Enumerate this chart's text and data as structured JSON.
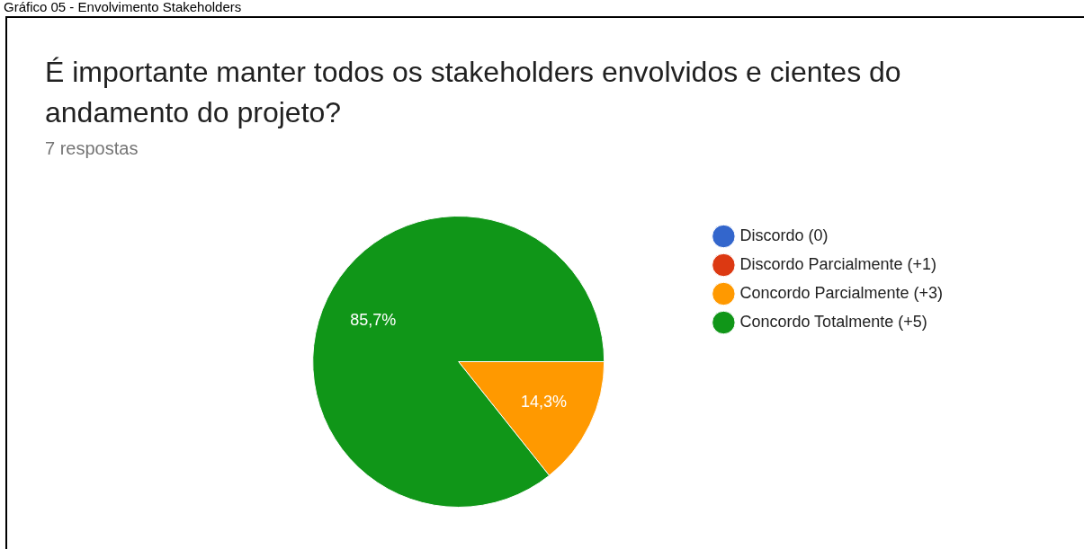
{
  "chart_data": {
    "type": "pie",
    "title": "É importante manter todos os stakeholders envolvidos e cientes do andamento do projeto?",
    "subtitle": "7 respostas",
    "annotations": [
      "Gráfico 05 - Envolvimento Stakeholders"
    ],
    "categories": [
      "Discordo (0)",
      "Discordo Parcialmente (+1)",
      "Concordo Parcialmente (+3)",
      "Concordo Totalmente (+5)"
    ],
    "values": [
      0,
      0,
      14.3,
      85.7
    ],
    "value_labels": [
      null,
      null,
      "14,3%",
      "85,7%"
    ],
    "colors": [
      "#3366cc",
      "#dc3912",
      "#ff9900",
      "#109618"
    ],
    "legend": "right"
  }
}
